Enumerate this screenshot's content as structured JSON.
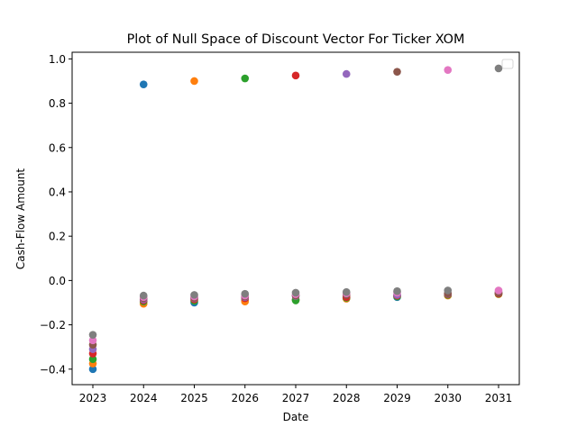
{
  "chart_data": {
    "type": "scatter",
    "title": "Plot of Null Space of Discount Vector For Ticker XOM",
    "xlabel": "Date",
    "ylabel": "Cash-Flow Amount",
    "x_categories": [
      "2023",
      "2024",
      "2025",
      "2026",
      "2027",
      "2028",
      "2029",
      "2030",
      "2031"
    ],
    "y_ticks": [
      "−0.4",
      "−0.2",
      "0.0",
      "0.2",
      "0.4",
      "0.6",
      "0.8",
      "1.0"
    ],
    "ylim": [
      -0.47,
      1.03
    ],
    "grid": false,
    "legend": "top-right (empty)",
    "series_colors": [
      "#1f77b4",
      "#ff7f0e",
      "#2ca02c",
      "#d62728",
      "#9467bd",
      "#8c564b",
      "#e377c2",
      "#7f7f7f"
    ],
    "series": [
      {
        "color": "#1f77b4",
        "values": [
          -0.4,
          0.885,
          -0.1,
          -0.09,
          -0.085,
          -0.078,
          -0.075,
          -0.065,
          -0.06
        ]
      },
      {
        "color": "#ff7f0e",
        "values": [
          -0.375,
          -0.105,
          0.9,
          -0.095,
          -0.088,
          -0.082,
          -0.07,
          -0.068,
          -0.062
        ]
      },
      {
        "color": "#2ca02c",
        "values": [
          -0.355,
          -0.095,
          -0.092,
          0.912,
          -0.09,
          -0.078,
          -0.072,
          -0.065,
          -0.06
        ]
      },
      {
        "color": "#d62728",
        "values": [
          -0.33,
          -0.09,
          -0.085,
          -0.08,
          0.925,
          -0.075,
          -0.068,
          -0.062,
          -0.058
        ]
      },
      {
        "color": "#9467bd",
        "values": [
          -0.31,
          -0.085,
          -0.08,
          -0.075,
          -0.07,
          0.932,
          -0.065,
          -0.06,
          -0.055
        ]
      },
      {
        "color": "#8c564b",
        "values": [
          -0.29,
          -0.08,
          -0.078,
          -0.072,
          -0.068,
          -0.065,
          0.942,
          -0.058,
          -0.055
        ]
      },
      {
        "color": "#e377c2",
        "values": [
          -0.27,
          -0.075,
          -0.072,
          -0.068,
          -0.062,
          -0.058,
          -0.055,
          0.95,
          -0.045
        ]
      },
      {
        "color": "#7f7f7f",
        "values": [
          -0.245,
          -0.068,
          -0.065,
          -0.06,
          -0.055,
          -0.052,
          -0.048,
          -0.045,
          0.957
        ]
      }
    ]
  }
}
